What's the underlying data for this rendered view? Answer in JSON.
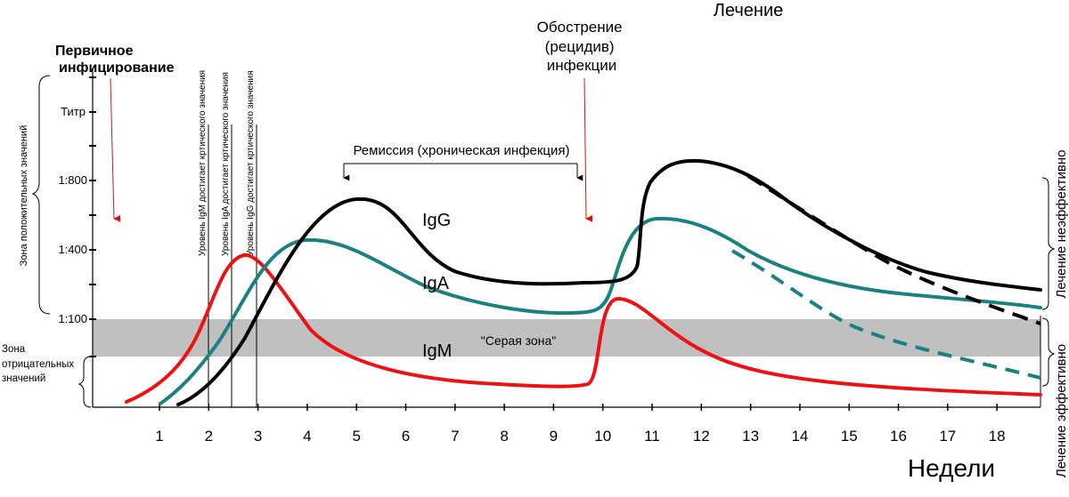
{
  "labels": {
    "primary_infection": [
      "Первичное",
      "инфицирование"
    ],
    "exacerbation": [
      "Обострение",
      "(рецидив)",
      "инфекции"
    ],
    "treatment": "Лечение",
    "remission": "Ремиссия (хроническая инфекция)",
    "gray_zone": "\"Серая зона\"",
    "weeks": "Недели",
    "positive_zone": "Зона положительных значений",
    "negative_zone": [
      "Зона",
      "отрицательных",
      "значений"
    ],
    "treatment_ineffective": "Лечение неэффективно",
    "treatment_effective": "Лечение эффективно",
    "igm_level": "Уровень IgM достигает кртического значения",
    "iga_level": "Уровень IgA достигает кртического значения",
    "igg_level": "Уровень IgG достигает кртического значения"
  },
  "chart_data": {
    "type": "line",
    "x_ticks": [
      "1",
      "2",
      "3",
      "4",
      "5",
      "6",
      "7",
      "8",
      "9",
      "10",
      "11",
      "12",
      "13",
      "14",
      "15",
      "16",
      "17",
      "18"
    ],
    "y_ticks": [
      "Титр",
      "1:800",
      "1:400",
      "1:100"
    ],
    "series": [
      {
        "name": "IgG",
        "color": "#000000"
      },
      {
        "name": "IgA",
        "color": "#1a8080"
      },
      {
        "name": "IgM",
        "color": "#ee1111"
      }
    ]
  }
}
